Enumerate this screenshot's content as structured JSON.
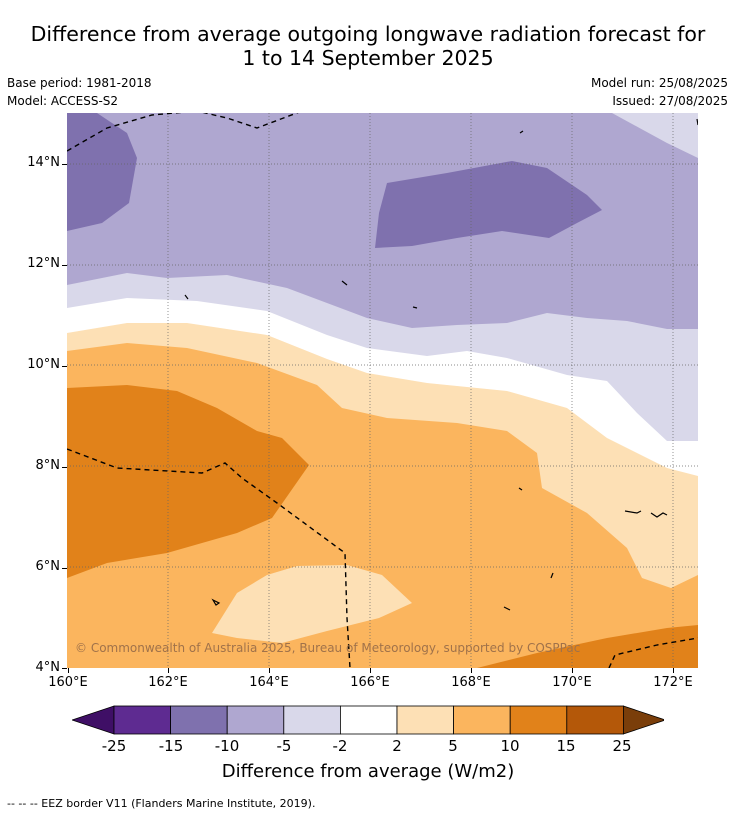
{
  "title_line1": "Difference from average outgoing longwave radiation forecast for",
  "title_line2": "1 to 14 September 2025",
  "base_period": "Base period: 1981-2018",
  "model": "Model: ACCESS-S2",
  "model_run": "Model run: 25/08/2025",
  "issued": "Issued: 27/08/2025",
  "copyright": "© Commonwealth of Australia 2025, Bureau of Meteorology, supported by COSPPac",
  "lat_ticks": [
    "14°N",
    "12°N",
    "10°N",
    "8°N",
    "6°N",
    "4°N"
  ],
  "lon_ticks": [
    "160°E",
    "162°E",
    "164°E",
    "166°E",
    "168°E",
    "170°E",
    "172°E"
  ],
  "colorbar": {
    "colors": [
      "#3f0f66",
      "#5e2b91",
      "#7f71ae",
      "#afa7d0",
      "#d9d8ea",
      "#ffffff",
      "#fde0b5",
      "#fbb55e",
      "#e1821a",
      "#b45809",
      "#7a3e0a"
    ],
    "labels": [
      "-25",
      "-15",
      "-10",
      "-5",
      "-2",
      "2",
      "5",
      "10",
      "15",
      "25"
    ],
    "title": "Difference from average (W/m2)"
  },
  "footnote": "--  --  -- EEZ border V11 (Flanders Marine Institute, 2019)."
}
